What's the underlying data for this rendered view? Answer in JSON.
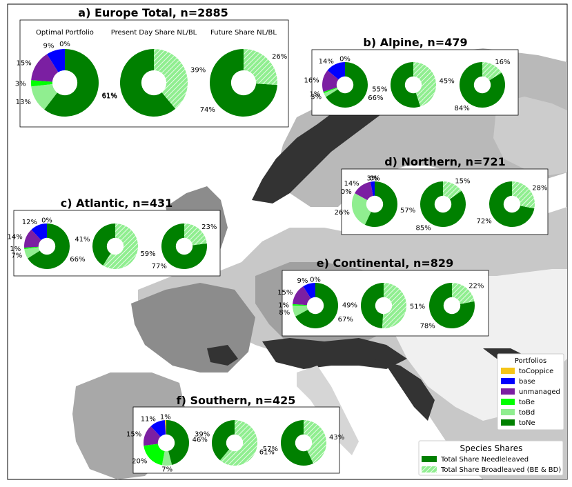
{
  "chart_data": {
    "type": "pie",
    "column_titles": [
      "Optimal Portfolio",
      "Present Day Share NL/BL",
      "Future Share NL/BL"
    ],
    "portfolio_legend": {
      "title": "Portfolios",
      "items": [
        {
          "label": "toCoppice",
          "color": "#f5c518"
        },
        {
          "label": "base",
          "color": "#0000ff"
        },
        {
          "label": "unmanaged",
          "color": "#7b1fa2"
        },
        {
          "label": "toBe",
          "color": "#00ff00"
        },
        {
          "label": "toBd",
          "color": "#90ee90"
        },
        {
          "label": "toNe",
          "color": "#008000"
        }
      ]
    },
    "species_legend": {
      "title": "Species Shares",
      "items": [
        {
          "label": "Total Share Needleleaved",
          "color": "#008000",
          "hatched": false
        },
        {
          "label": "Total Share Broadleaved (BE & BD)",
          "color": "#90ee90",
          "hatched": true
        }
      ]
    },
    "panels": [
      {
        "title": "a) Europe Total, n=2885",
        "portfolio": [
          {
            "name": "toCoppice",
            "value": 0,
            "label": "0%"
          },
          {
            "name": "base",
            "value": 9,
            "label": "9%"
          },
          {
            "name": "unmanaged",
            "value": 15,
            "label": "15%"
          },
          {
            "name": "toBe",
            "value": 3,
            "label": "3%"
          },
          {
            "name": "toBd",
            "value": 13,
            "label": "13%"
          },
          {
            "name": "toNe",
            "value": 61,
            "label": "61%"
          }
        ],
        "present": {
          "broadleaved": 39,
          "needleleaved": 61,
          "labels": [
            "39%",
            "61%"
          ]
        },
        "future": {
          "broadleaved": 26,
          "needleleaved": 74,
          "labels": [
            "26%",
            "74%"
          ]
        }
      },
      {
        "title": "b) Alpine, n=479",
        "portfolio": [
          {
            "name": "toCoppice",
            "value": 0,
            "label": "0%"
          },
          {
            "name": "base",
            "value": 14,
            "label": "14%"
          },
          {
            "name": "unmanaged",
            "value": 16,
            "label": "16%"
          },
          {
            "name": "toBe",
            "value": 1,
            "label": "1%"
          },
          {
            "name": "toBd",
            "value": 3,
            "label": "3%"
          },
          {
            "name": "toNe",
            "value": 66,
            "label": "66%"
          }
        ],
        "present": {
          "broadleaved": 45,
          "needleleaved": 55,
          "labels": [
            "45%",
            "55%"
          ]
        },
        "future": {
          "broadleaved": 16,
          "needleleaved": 84,
          "labels": [
            "16%",
            "84%"
          ]
        }
      },
      {
        "title": "c) Atlantic, n=431",
        "portfolio": [
          {
            "name": "toCoppice",
            "value": 0,
            "label": "0%"
          },
          {
            "name": "base",
            "value": 12,
            "label": "12%"
          },
          {
            "name": "unmanaged",
            "value": 14,
            "label": "14%"
          },
          {
            "name": "toBe",
            "value": 1,
            "label": "1%"
          },
          {
            "name": "toBd",
            "value": 7,
            "label": "7%"
          },
          {
            "name": "toNe",
            "value": 66,
            "label": "66%"
          }
        ],
        "present": {
          "broadleaved": 59,
          "needleleaved": 41,
          "labels": [
            "59%",
            "41%"
          ]
        },
        "future": {
          "broadleaved": 23,
          "needleleaved": 77,
          "labels": [
            "23%",
            "77%"
          ]
        }
      },
      {
        "title": "d) Northern, n=721",
        "portfolio": [
          {
            "name": "toCoppice",
            "value": 0,
            "label": "0%"
          },
          {
            "name": "base",
            "value": 3,
            "label": "3%"
          },
          {
            "name": "unmanaged",
            "value": 14,
            "label": "14%"
          },
          {
            "name": "toBe",
            "value": 0,
            "label": "0%"
          },
          {
            "name": "toBd",
            "value": 26,
            "label": "26%"
          },
          {
            "name": "toNe",
            "value": 57,
            "label": "57%"
          }
        ],
        "present": {
          "broadleaved": 15,
          "needleleaved": 85,
          "labels": [
            "15%",
            "85%"
          ]
        },
        "future": {
          "broadleaved": 28,
          "needleleaved": 72,
          "labels": [
            "28%",
            "72%"
          ]
        }
      },
      {
        "title": "e) Continental, n=829",
        "portfolio": [
          {
            "name": "toCoppice",
            "value": 0,
            "label": "0%"
          },
          {
            "name": "base",
            "value": 9,
            "label": "9%"
          },
          {
            "name": "unmanaged",
            "value": 15,
            "label": "15%"
          },
          {
            "name": "toBe",
            "value": 1,
            "label": "1%"
          },
          {
            "name": "toBd",
            "value": 8,
            "label": "8%"
          },
          {
            "name": "toNe",
            "value": 67,
            "label": "67%"
          }
        ],
        "present": {
          "broadleaved": 51,
          "needleleaved": 49,
          "labels": [
            "51%",
            "49%"
          ]
        },
        "future": {
          "broadleaved": 22,
          "needleleaved": 78,
          "labels": [
            "22%",
            "78%"
          ]
        }
      },
      {
        "title": "f) Southern, n=425",
        "portfolio": [
          {
            "name": "toCoppice",
            "value": 1,
            "label": "1%"
          },
          {
            "name": "base",
            "value": 11,
            "label": "11%"
          },
          {
            "name": "unmanaged",
            "value": 15,
            "label": "15%"
          },
          {
            "name": "toBe",
            "value": 20,
            "label": "20%"
          },
          {
            "name": "toBd",
            "value": 7,
            "label": "7%"
          },
          {
            "name": "toNe",
            "value": 46,
            "label": "46%"
          }
        ],
        "present": {
          "broadleaved": 61,
          "needleleaved": 39,
          "labels": [
            "61%",
            "39%"
          ]
        },
        "future": {
          "broadleaved": 43,
          "needleleaved": 57,
          "labels": [
            "43%",
            "57%"
          ]
        }
      }
    ]
  }
}
